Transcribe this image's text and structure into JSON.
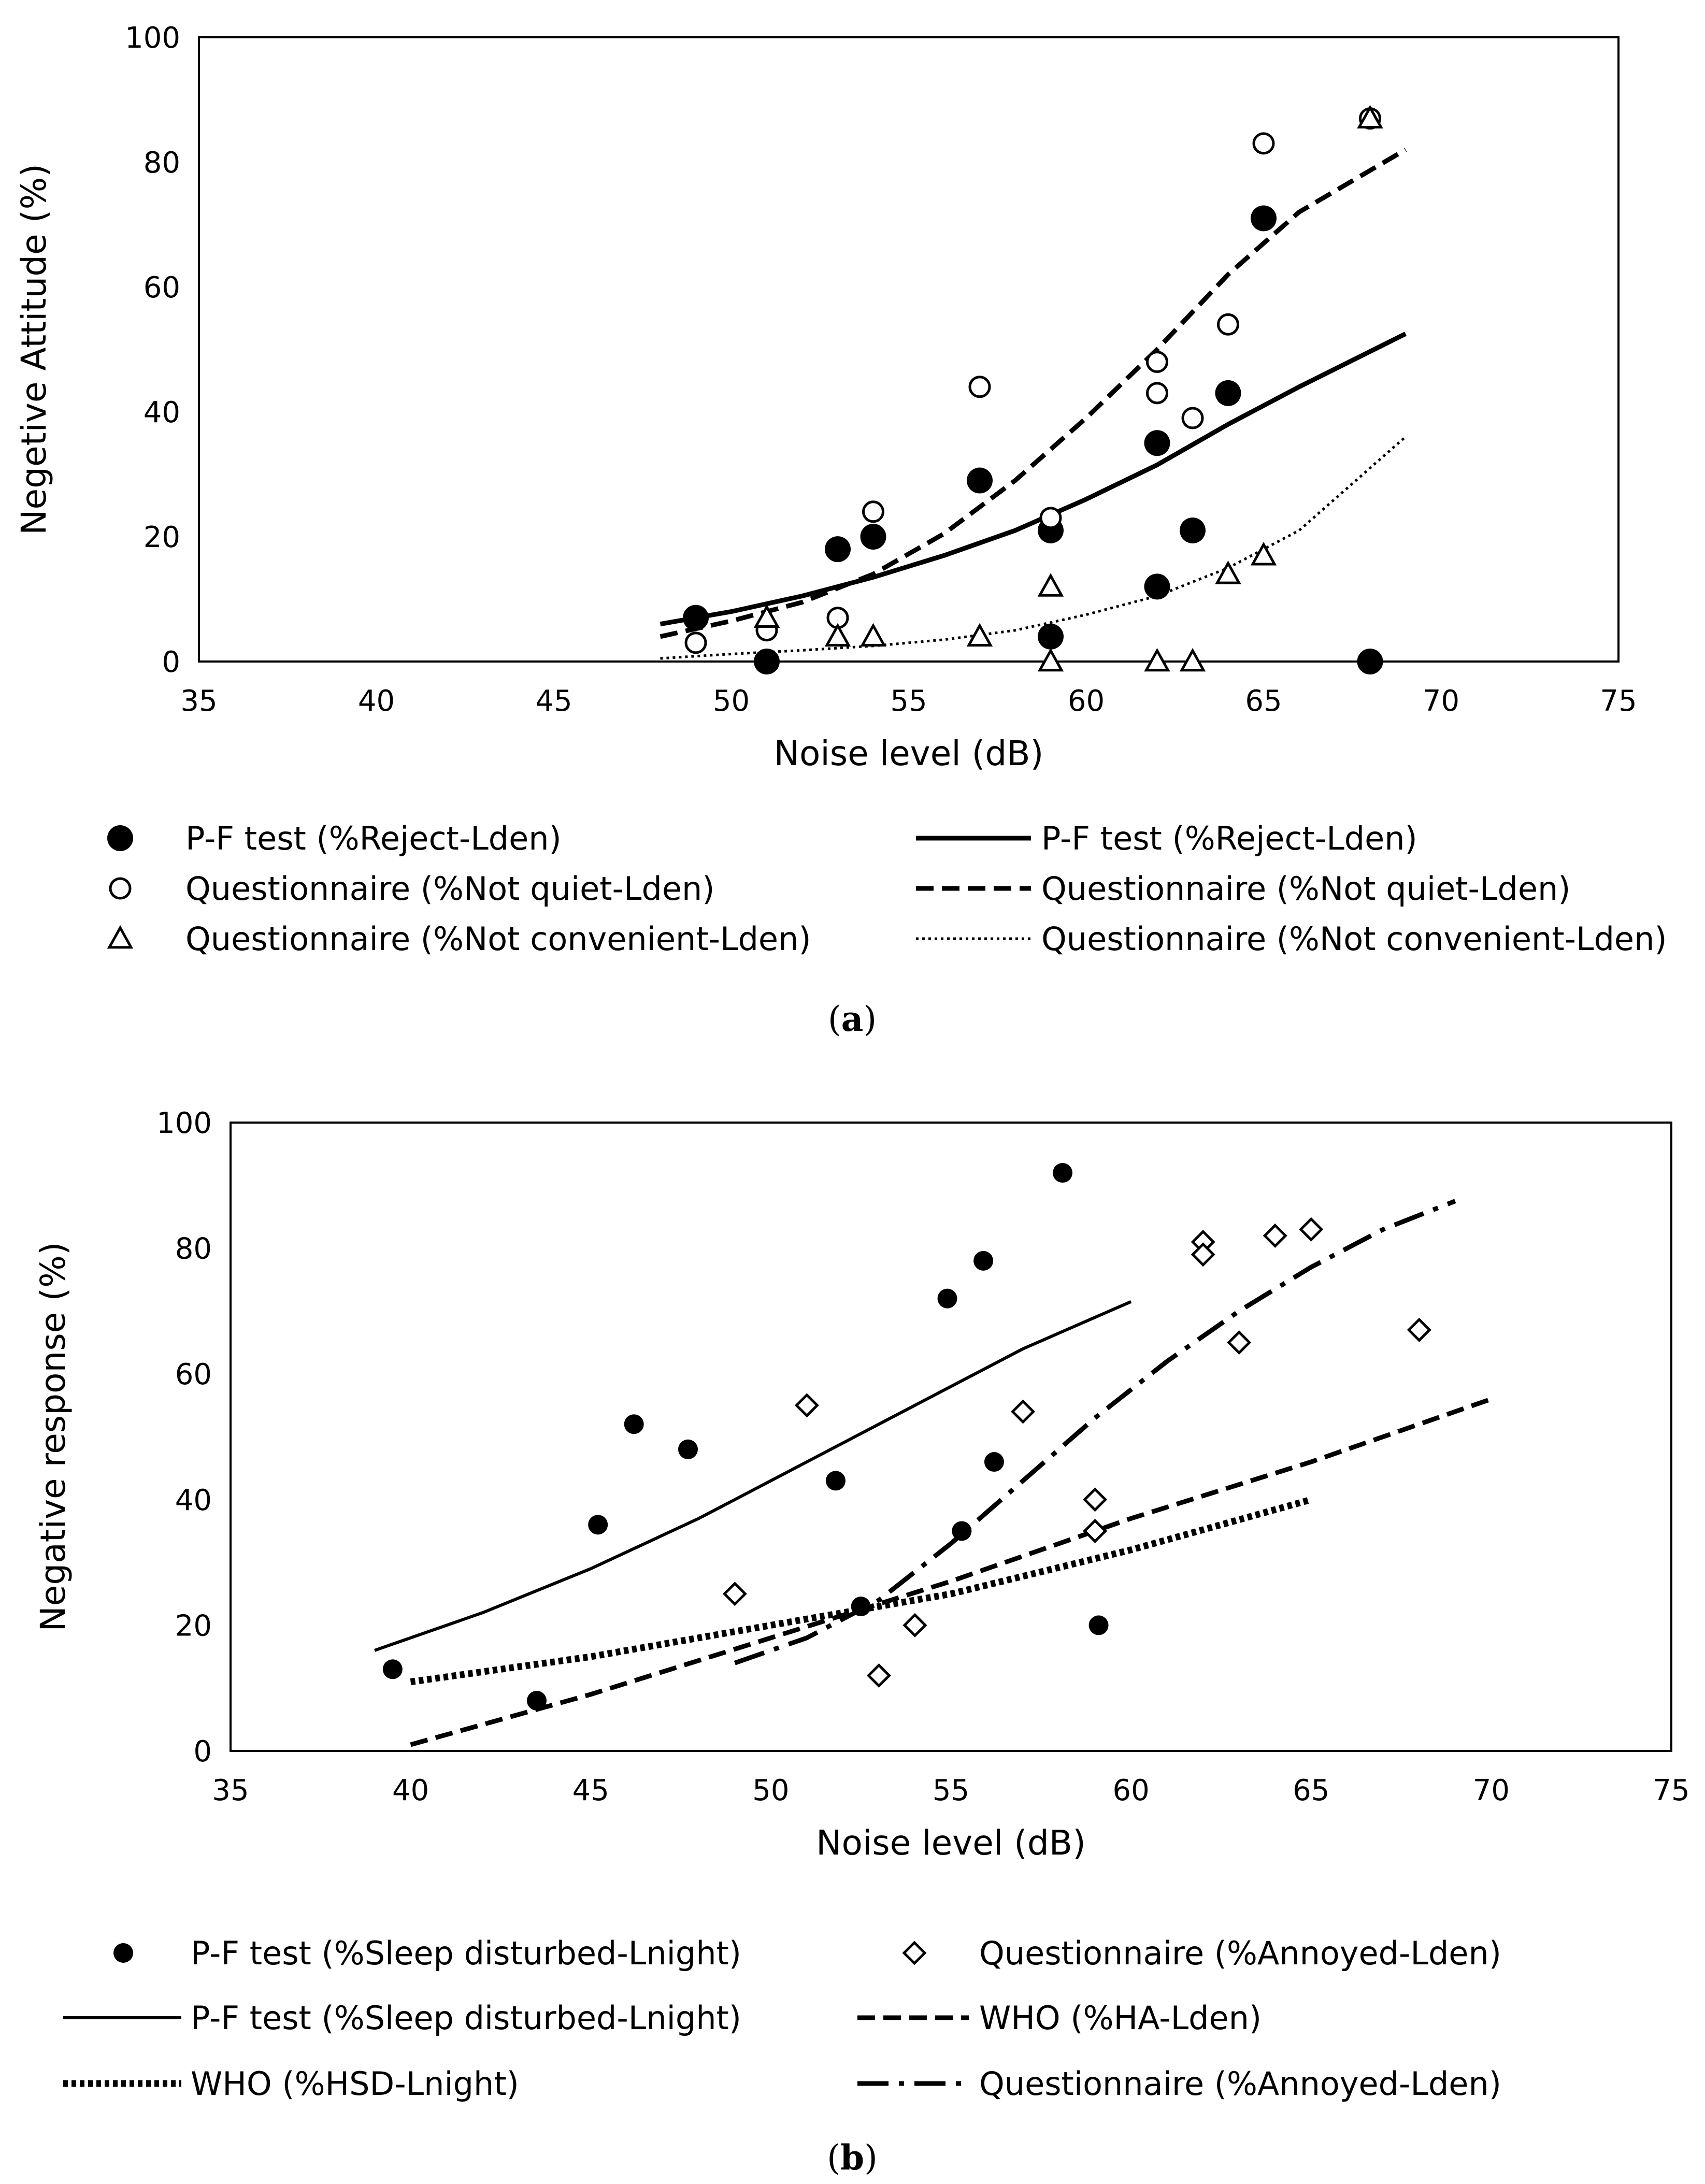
{
  "chart_data": [
    {
      "type": "scatter",
      "panel": "(a)",
      "panel_letter": "a",
      "xlabel": "Noise level (dB)",
      "ylabel": "Negetive Attitude (%)",
      "xlim": [
        35,
        75
      ],
      "ylim": [
        0,
        100
      ],
      "xticks": [
        35,
        40,
        45,
        50,
        55,
        60,
        65,
        70,
        75
      ],
      "yticks": [
        0,
        20,
        40,
        60,
        80,
        100
      ],
      "grid": false,
      "legend_position": "bottom",
      "scatter_series": [
        {
          "key": "reject",
          "name": "P-F test (%Reject-Lden)",
          "marker": "filled-circle",
          "x": [
            49,
            51,
            53,
            54,
            57,
            59,
            59,
            62,
            62,
            63,
            64,
            65,
            68
          ],
          "y": [
            7,
            0,
            18,
            20,
            29,
            21,
            4,
            35,
            12,
            21,
            43,
            71,
            0
          ]
        },
        {
          "key": "not_quiet",
          "name": "Questionnaire (%Not quiet-Lden)",
          "marker": "open-circle",
          "x": [
            49,
            51,
            53,
            54,
            57,
            59,
            62,
            62,
            63,
            64,
            65,
            68
          ],
          "y": [
            3,
            5,
            7,
            24,
            44,
            23,
            48,
            43,
            39,
            54,
            83,
            87
          ]
        },
        {
          "key": "not_convenient",
          "name": "Questionnaire (%Not convenient-Lden)",
          "marker": "open-triangle",
          "x": [
            51,
            53,
            54,
            57,
            59,
            59,
            62,
            63,
            64,
            65,
            68
          ],
          "y": [
            7,
            4,
            4,
            4,
            12,
            0,
            0,
            0,
            14,
            17,
            87
          ]
        }
      ],
      "line_series": [
        {
          "key": "reject_fit",
          "name": "P-F test (%Reject-Lden)",
          "style": "solid",
          "x": [
            48,
            50,
            52,
            54,
            56,
            58,
            60,
            62,
            64,
            66,
            69
          ],
          "y": [
            6,
            8,
            10.5,
            13.5,
            17,
            21,
            26,
            31.5,
            38,
            44,
            52.5
          ]
        },
        {
          "key": "not_quiet_fit",
          "name": "Questionnaire (%Not quiet-Lden)",
          "style": "dashed",
          "x": [
            48,
            50,
            52,
            54,
            56,
            58,
            60,
            62,
            64,
            66,
            69
          ],
          "y": [
            4,
            6.5,
            9.5,
            14,
            20.5,
            29,
            39,
            50,
            62,
            72,
            82
          ]
        },
        {
          "key": "not_convenient_fit",
          "name": "Questionnaire (%Not convenient-Lden)",
          "style": "dotted",
          "x": [
            48,
            50,
            52,
            54,
            56,
            58,
            60,
            62,
            64,
            66,
            69
          ],
          "y": [
            0.5,
            1.2,
            1.8,
            2.5,
            3.5,
            5,
            7.5,
            10.5,
            15,
            21,
            36
          ]
        }
      ]
    },
    {
      "type": "scatter",
      "panel": "(b)",
      "panel_letter": "b",
      "xlabel": "Noise level (dB)",
      "ylabel": "Negative response (%)",
      "xlim": [
        35,
        75
      ],
      "ylim": [
        0,
        100
      ],
      "xticks": [
        35,
        40,
        45,
        50,
        55,
        60,
        65,
        70,
        75
      ],
      "yticks": [
        0,
        20,
        40,
        60,
        80,
        100
      ],
      "grid": false,
      "legend_position": "bottom",
      "scatter_series": [
        {
          "key": "sleep",
          "name": "P-F test (%Sleep disturbed-Lnight)",
          "marker": "filled-circle-small",
          "x": [
            39.5,
            43.5,
            45.2,
            46.2,
            47.7,
            51.8,
            52.5,
            54.9,
            55.3,
            55.9,
            56.2,
            58.1,
            59.1
          ],
          "y": [
            13,
            8,
            36,
            52,
            48,
            43,
            23,
            72,
            35,
            78,
            46,
            92,
            20
          ]
        },
        {
          "key": "annoyed",
          "name": "Questionnaire (%Annoyed-Lden)",
          "marker": "open-diamond",
          "x": [
            49,
            51,
            53,
            54,
            57,
            59,
            59,
            62,
            62,
            63,
            64,
            65,
            68
          ],
          "y": [
            25,
            55,
            12,
            20,
            54,
            40,
            35,
            81,
            79,
            65,
            82,
            83,
            67
          ]
        }
      ],
      "line_series": [
        {
          "key": "sleep_fit",
          "name": "P-F test (%Sleep disturbed-Lnight)",
          "style": "solid-thin",
          "x": [
            39,
            42,
            45,
            48,
            51,
            54,
            57,
            60
          ],
          "y": [
            16,
            22,
            29,
            37,
            46,
            55,
            64,
            71.5
          ]
        },
        {
          "key": "who_ha",
          "name": "WHO (%HA-Lden)",
          "style": "dashed",
          "x": [
            40,
            45,
            50,
            55,
            60,
            65,
            70
          ],
          "y": [
            1,
            9,
            18,
            27,
            37,
            46,
            56
          ]
        },
        {
          "key": "who_hsd",
          "name": "WHO (%HSD-Lnight)",
          "style": "dotted-thick",
          "x": [
            40,
            45,
            50,
            55,
            60,
            65
          ],
          "y": [
            11,
            15,
            20,
            25,
            32,
            40
          ]
        },
        {
          "key": "annoyed_fit",
          "name": "Questionnaire (%Annoyed-Lden)",
          "style": "dash-dot",
          "x": [
            49,
            51,
            53,
            55,
            57,
            59,
            61,
            63,
            65,
            67,
            69
          ],
          "y": [
            14,
            18,
            24,
            33,
            43,
            53,
            62,
            70,
            77,
            83,
            87.5
          ]
        }
      ]
    }
  ]
}
